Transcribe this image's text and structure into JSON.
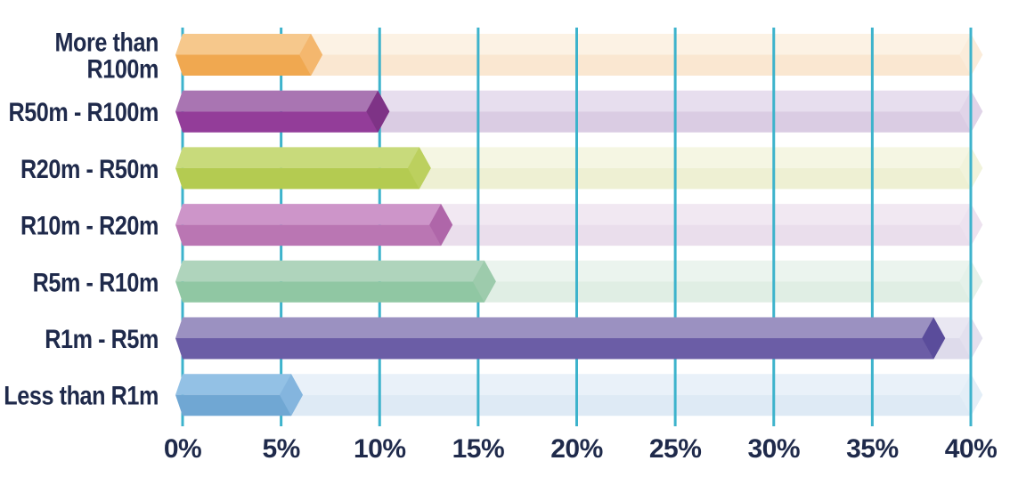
{
  "chart_data": {
    "type": "bar",
    "orientation": "horizontal",
    "categories": [
      "More than R100m",
      "R50m - R100m",
      "R20m - R50m",
      "R10m - R20m",
      "R5m - R10m",
      "R1m - R5m",
      "Less than R1m"
    ],
    "category_label_lines": [
      [
        "More than",
        "R100m"
      ],
      [
        "R50m - R100m"
      ],
      [
        "R20m - R50m"
      ],
      [
        "R10m - R20m"
      ],
      [
        "R5m - R10m"
      ],
      [
        "R1m - R5m"
      ],
      [
        "Less than R1m"
      ]
    ],
    "values": [
      7.1,
      10.5,
      12.6,
      13.7,
      15.9,
      38.7,
      6.1
    ],
    "unit": "%",
    "xlabel": "",
    "ylabel": "",
    "x_range": [
      0,
      40
    ],
    "x_tick_values": [
      0,
      5,
      10,
      15,
      20,
      25,
      30,
      35,
      40
    ],
    "x_tick_labels": [
      "0%",
      "5%",
      "10%",
      "15%",
      "20%",
      "25%",
      "30%",
      "35%",
      "40%"
    ],
    "track_value": 40.6,
    "grid": true,
    "legend": "none",
    "colors": {
      "gridline": "#3DB3CC",
      "label": "#1F2A4B",
      "background": "#FFFFFF"
    },
    "bar_styles": [
      {
        "name": "orange",
        "top": "#F6C88C",
        "bottom": "#F0A850",
        "facet": "#F4B76E",
        "track_top": "#FCF2E4",
        "track_bottom": "#FAE7D1",
        "track_facet": "#FBECDA"
      },
      {
        "name": "purple",
        "top": "#A975B2",
        "bottom": "#933D99",
        "facet": "#7E3386",
        "track_top": "#E7DEEE",
        "track_bottom": "#DACCE3",
        "track_facet": "#E0D4E8"
      },
      {
        "name": "lime-green",
        "top": "#C8DA7B",
        "bottom": "#B4CB51",
        "facet": "#BCD05E",
        "track_top": "#F5F6E3",
        "track_bottom": "#EEF0D3",
        "track_facet": "#F1F3DB"
      },
      {
        "name": "mauve-pink",
        "top": "#CD95C9",
        "bottom": "#BA76B3",
        "facet": "#AF66A9",
        "track_top": "#F1E8F2",
        "track_bottom": "#EADEEC",
        "track_facet": "#EDE2EF"
      },
      {
        "name": "seafoam",
        "top": "#AFD4BC",
        "bottom": "#90C7A3",
        "facet": "#9DCBAC",
        "track_top": "#EBF4EE",
        "track_bottom": "#E0EEE4",
        "track_facet": "#E5F1E9"
      },
      {
        "name": "deep-purple",
        "top": "#9B91C1",
        "bottom": "#6B5DA6",
        "facet": "#5A4C9B",
        "track_top": "#E9E7F2",
        "track_bottom": "#DEDBEB",
        "track_facet": "#E3E0EE"
      },
      {
        "name": "sky-blue",
        "top": "#93C1E5",
        "bottom": "#70A7D3",
        "facet": "#84B5DE",
        "track_top": "#E9F1F9",
        "track_bottom": "#DEEAF5",
        "track_facet": "#E3EEF7"
      }
    ]
  }
}
